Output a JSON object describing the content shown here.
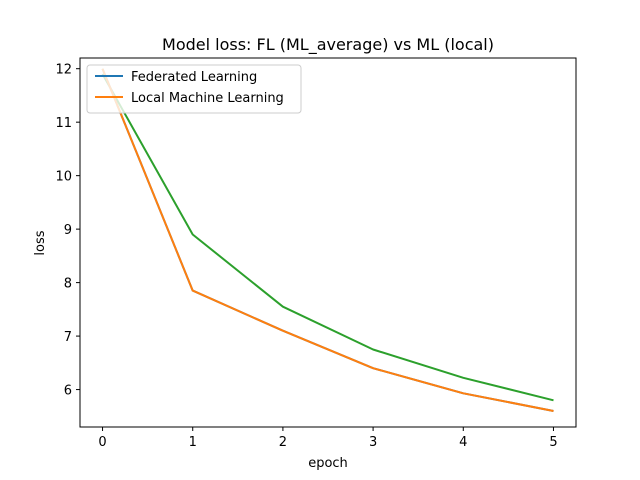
{
  "chart_data": {
    "type": "line",
    "title": "Model loss: FL (ML_average) vs ML (local)",
    "xlabel": "epoch",
    "ylabel": "loss",
    "x": [
      0,
      1,
      2,
      3,
      4,
      5
    ],
    "xlim": [
      -0.25,
      5.25
    ],
    "ylim": [
      5.3,
      12.2
    ],
    "xticks": [
      0,
      1,
      2,
      3,
      4,
      5
    ],
    "yticks": [
      6,
      7,
      8,
      9,
      10,
      11,
      12
    ],
    "grid": false,
    "legend_position": "upper-left",
    "legend_entries": [
      {
        "label": "Federated Learning",
        "color": "#1f77b4"
      },
      {
        "label": "Local Machine Learning",
        "color": "#ff7f0e"
      }
    ],
    "series": [
      {
        "name": "",
        "color": "#2ca02c",
        "values": [
          11.9,
          8.9,
          7.55,
          6.75,
          6.22,
          5.8
        ]
      },
      {
        "name": "Federated Learning",
        "color": "#1f77b4",
        "values": [
          12.0,
          7.85,
          7.1,
          6.4,
          5.93,
          5.6
        ]
      },
      {
        "name": "Local Machine Learning",
        "color": "#ff7f0e",
        "values": [
          12.0,
          7.85,
          7.1,
          6.4,
          5.93,
          5.6
        ]
      }
    ]
  }
}
